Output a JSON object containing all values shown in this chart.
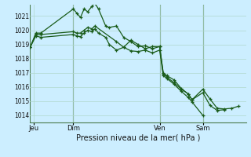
{
  "title": "Pression niveau de la mer( hPa )",
  "bg_color": "#cceeff",
  "grid_color": "#b0d8cc",
  "line_color": "#1a5c1a",
  "divider_color": "#4a7a4a",
  "ylim": [
    1013.5,
    1021.8
  ],
  "yticks": [
    1014,
    1015,
    1016,
    1017,
    1018,
    1019,
    1020,
    1021
  ],
  "day_labels": [
    "Jeu",
    "Dim",
    "Ven",
    "Sam"
  ],
  "day_positions": [
    0.5,
    6,
    18,
    24
  ],
  "xlim": [
    0,
    30
  ],
  "series1_x": [
    0,
    0.8,
    1.5,
    6.0,
    6.5,
    7.0,
    7.5,
    8.0,
    8.6,
    9.0,
    9.5,
    10.5,
    11.0,
    12.0,
    13.0,
    14.0,
    15.0,
    16.0,
    17.0,
    18.0,
    18.5,
    19.0,
    20.0,
    21.0,
    22.0,
    22.5,
    24.0,
    25.0,
    26.0,
    27.0,
    28.0,
    29.0
  ],
  "series1_y": [
    1018.8,
    1019.8,
    1019.8,
    1021.5,
    1021.2,
    1020.9,
    1021.5,
    1021.3,
    1021.7,
    1021.9,
    1021.5,
    1020.3,
    1020.2,
    1020.3,
    1019.5,
    1019.2,
    1018.85,
    1018.9,
    1018.7,
    1018.85,
    1017.0,
    1016.8,
    1016.5,
    1015.9,
    1015.5,
    1015.1,
    1015.85,
    1015.15,
    1014.5,
    1014.45,
    1014.5,
    1014.65
  ],
  "series2_x": [
    0,
    0.8,
    1.5,
    6.0,
    6.5,
    7.0,
    7.5,
    8.0,
    8.6,
    9.0,
    12.0,
    13.0,
    14.0,
    15.0,
    16.0,
    17.0,
    18.0,
    18.5,
    19.0,
    20.0,
    21.0,
    22.0,
    22.5,
    24.0,
    25.0,
    26.0,
    27.0
  ],
  "series2_y": [
    1018.8,
    1019.7,
    1019.7,
    1019.9,
    1019.8,
    1019.8,
    1020.0,
    1020.2,
    1020.1,
    1020.3,
    1019.2,
    1018.8,
    1019.3,
    1019.0,
    1018.7,
    1018.85,
    1018.85,
    1016.95,
    1016.7,
    1016.3,
    1015.85,
    1015.5,
    1015.1,
    1015.6,
    1014.7,
    1014.35,
    1014.4
  ],
  "series3_x": [
    0,
    0.8,
    1.5,
    6.0,
    6.5,
    7.0,
    7.5,
    8.0,
    8.6,
    9.0,
    9.5,
    10.5,
    11.0,
    12.0,
    13.0,
    14.0,
    15.0,
    16.0,
    17.0,
    18.0,
    18.5,
    19.0,
    20.0,
    21.0,
    22.0,
    22.5,
    24.0
  ],
  "series3_y": [
    1018.8,
    1019.6,
    1019.5,
    1019.7,
    1019.6,
    1019.55,
    1019.8,
    1020.0,
    1019.9,
    1020.1,
    1019.8,
    1019.5,
    1019.0,
    1018.6,
    1018.8,
    1018.55,
    1018.5,
    1018.6,
    1018.4,
    1018.6,
    1016.8,
    1016.6,
    1016.2,
    1015.7,
    1015.25,
    1014.95,
    1014.0
  ]
}
